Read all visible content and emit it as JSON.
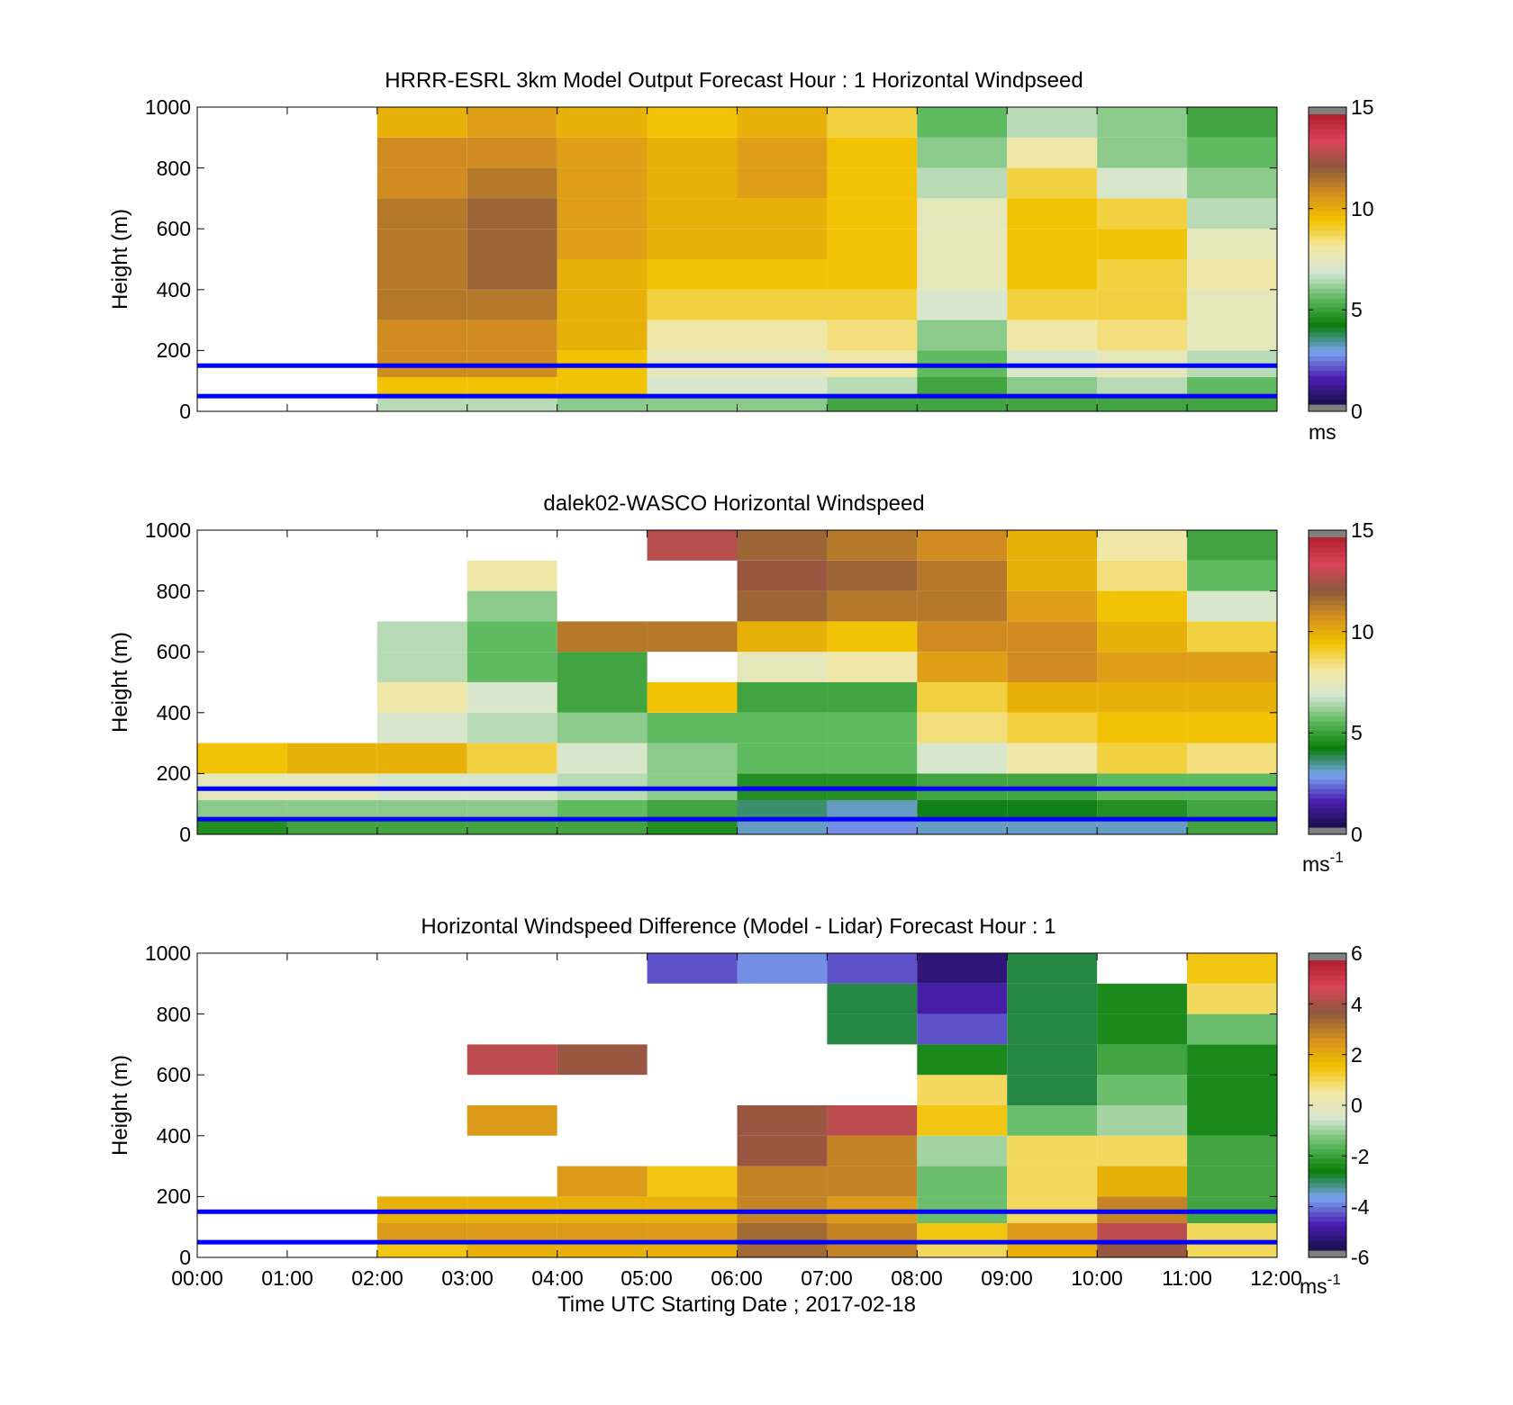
{
  "panels": [
    {
      "title": "HRRR-ESRL 3km Model Output   Forecast Hour : 1 Horizontal Windpseed",
      "ylabel": "Height (m)",
      "yticks": [
        "0",
        "200",
        "400",
        "600",
        "800",
        "1000"
      ],
      "colorbar": {
        "ticks": [
          "0",
          "5",
          "10",
          "15"
        ],
        "unit": "ms"
      }
    },
    {
      "title": "dalek02-WASCO  Horizontal Windspeed",
      "ylabel": "Height (m)",
      "yticks": [
        "0",
        "200",
        "400",
        "600",
        "800",
        "1000"
      ],
      "colorbar": {
        "ticks": [
          "0",
          "5",
          "10",
          "15"
        ],
        "unit": "ms",
        "unit_sup": "-1"
      }
    },
    {
      "title": "Horizontal Windspeed Difference (Model - Lidar) Forecast Hour : 1",
      "ylabel": "Height (m)",
      "yticks": [
        "0",
        "200",
        "400",
        "600",
        "800",
        "1000"
      ],
      "xticks": [
        "00:00",
        "01:00",
        "02:00",
        "03:00",
        "04:00",
        "05:00",
        "06:00",
        "07:00",
        "08:00",
        "09:00",
        "10:00",
        "11:00",
        "12:00"
      ],
      "xlabel": "Time UTC  Starting Date ; 2017-02-18",
      "colorbar": {
        "ticks": [
          "-6",
          "-4",
          "-2",
          "0",
          "2",
          "4",
          "6"
        ],
        "unit": "ms",
        "unit_sup": "-1"
      }
    }
  ],
  "colors": {
    "reference_lines": "#0000ff",
    "speed_scale": [
      "#7f7f7f",
      "#1a0f4a",
      "#4b1fb0",
      "#7aa4f0",
      "#0a7d0a",
      "#5cb85c",
      "#d4e6d2",
      "#f3e7a1",
      "#f2c200",
      "#d5901f",
      "#8c5a3c",
      "#d9435a",
      "#b0202e",
      "#7f7f7f"
    ],
    "diff_scale": [
      "#7f7f7f",
      "#1a0f4a",
      "#4b1fb0",
      "#7aa4f0",
      "#0a7d0a",
      "#5cb85c",
      "#d4e6d2",
      "#f3e7a1",
      "#f2c200",
      "#d5901f",
      "#8c5a3c",
      "#d9435a",
      "#b0202e",
      "#7f7f7f"
    ]
  },
  "chart_data": [
    {
      "type": "heatmap",
      "title": "HRRR-ESRL 3km Model Output   Forecast Hour : 1 Horizontal Windpseed",
      "xlabel": "",
      "ylabel": "Height (m)",
      "xlim": [
        0,
        12
      ],
      "ylim": [
        0,
        1000
      ],
      "clim": [
        0,
        15
      ],
      "colorbar_label": "ms",
      "reference_lines_m": [
        50,
        150
      ],
      "x_hours": [
        2,
        3,
        4,
        5,
        6,
        7,
        8,
        9,
        10,
        11
      ],
      "y_heights_m": [
        25,
        75,
        150,
        250,
        350,
        450,
        550,
        650,
        750,
        850,
        950
      ],
      "z": [
        [
          6.5,
          6.5,
          6,
          6,
          6,
          5,
          5,
          5,
          5,
          5
        ],
        [
          9.5,
          9.5,
          9.5,
          7,
          7,
          6.5,
          5,
          6,
          6.5,
          5.5
        ],
        [
          11,
          11,
          9.5,
          7.5,
          7.5,
          8,
          5.5,
          7,
          7.5,
          6.5
        ],
        [
          11,
          11,
          10,
          8,
          8,
          8.5,
          6,
          8,
          8.5,
          7.5
        ],
        [
          11.5,
          11.5,
          10,
          9,
          9,
          9,
          7,
          9,
          9,
          7.5
        ],
        [
          11.5,
          12,
          10,
          9.5,
          9.5,
          9.5,
          7.5,
          9.5,
          9,
          8
        ],
        [
          11.5,
          12,
          10.5,
          10,
          10,
          9.5,
          7.5,
          9.5,
          9.5,
          7.5
        ],
        [
          11.5,
          12,
          10.5,
          10,
          10,
          9.5,
          7.5,
          9.5,
          9,
          6.5
        ],
        [
          11,
          11.5,
          10.5,
          10,
          10.5,
          9.5,
          6.5,
          9,
          7,
          6
        ],
        [
          11,
          11,
          10.5,
          10,
          10.5,
          9.5,
          6,
          8,
          6,
          5.5
        ],
        [
          10,
          10.5,
          10,
          9.5,
          10,
          9,
          5.5,
          6.5,
          6,
          5
        ]
      ]
    },
    {
      "type": "heatmap",
      "title": "dalek02-WASCO  Horizontal Windspeed",
      "xlabel": "",
      "ylabel": "Height (m)",
      "xlim": [
        0,
        12
      ],
      "ylim": [
        0,
        1000
      ],
      "clim": [
        0,
        15
      ],
      "colorbar_label": "ms^-1",
      "reference_lines_m": [
        50,
        150
      ],
      "x_hours": [
        0,
        1,
        2,
        3,
        4,
        5,
        6,
        7,
        8,
        9,
        10,
        11
      ],
      "y_heights_m": [
        25,
        75,
        150,
        250,
        350,
        450,
        550,
        650,
        750,
        850,
        950
      ],
      "z": [
        [
          4.5,
          5,
          5,
          5,
          5,
          4.5,
          3,
          2.5,
          3,
          3,
          3,
          5
        ],
        [
          6,
          6,
          6,
          6,
          5.5,
          5,
          3.5,
          3,
          4,
          4,
          4.5,
          5
        ],
        [
          7.5,
          7.5,
          7,
          7,
          6.5,
          6,
          4.5,
          4.5,
          5,
          5,
          5.5,
          5.5
        ],
        [
          9.5,
          10,
          10,
          9,
          7,
          6,
          5.5,
          5.5,
          7,
          8,
          9,
          8.5
        ],
        [
          null,
          null,
          7,
          6.5,
          6,
          5.5,
          5.5,
          5.5,
          8.5,
          9,
          9.5,
          9.5
        ],
        [
          null,
          null,
          8,
          7,
          5,
          9.5,
          5,
          5,
          9,
          10,
          10,
          10
        ],
        [
          null,
          null,
          6.5,
          5.5,
          5,
          null,
          7.5,
          8,
          10.5,
          11,
          10.5,
          10.5
        ],
        [
          null,
          null,
          6.5,
          5.5,
          11.5,
          11.5,
          10,
          9.5,
          11,
          11,
          10,
          9
        ],
        [
          null,
          null,
          null,
          6,
          null,
          null,
          12,
          11.5,
          11.5,
          10.5,
          9.5,
          7
        ],
        [
          null,
          null,
          null,
          8,
          null,
          null,
          12.5,
          12,
          11.5,
          10,
          8.5,
          5.5
        ],
        [
          null,
          null,
          null,
          null,
          null,
          13,
          12,
          11.5,
          11,
          10,
          8,
          5
        ]
      ]
    },
    {
      "type": "heatmap",
      "title": "Horizontal Windspeed Difference (Model - Lidar) Forecast Hour : 1",
      "xlabel": "Time UTC  Starting Date ; 2017-02-18",
      "ylabel": "Height (m)",
      "xlim": [
        0,
        12
      ],
      "ylim": [
        0,
        1000
      ],
      "clim": [
        -6,
        6
      ],
      "colorbar_label": "ms^-1",
      "reference_lines_m": [
        50,
        150
      ],
      "x_hours": [
        2,
        3,
        4,
        5,
        6,
        7,
        8,
        9,
        10,
        11
      ],
      "y_heights_m": [
        25,
        75,
        150,
        250,
        350,
        450,
        550,
        650,
        750,
        850,
        950
      ],
      "z": [
        [
          1.5,
          2,
          2,
          2,
          3.5,
          3,
          1,
          2,
          4,
          1
        ],
        [
          2.5,
          2.5,
          2.5,
          2.5,
          3.5,
          3,
          1.5,
          2.5,
          4.5,
          1
        ],
        [
          2,
          2,
          2,
          2,
          3,
          2.5,
          -1.5,
          1,
          3,
          -2
        ],
        [
          null,
          null,
          2.5,
          1.5,
          3,
          3,
          -1.5,
          1,
          2,
          -2
        ],
        [
          null,
          null,
          null,
          null,
          4,
          3,
          -1,
          1,
          1,
          -2
        ],
        [
          null,
          2.5,
          null,
          null,
          4,
          4.5,
          1.5,
          -1.5,
          -1,
          -2.5
        ],
        [
          null,
          null,
          null,
          null,
          null,
          null,
          1,
          -3,
          -1.5,
          -2.5
        ],
        [
          null,
          4.5,
          4,
          null,
          null,
          null,
          -2.5,
          -3,
          -2,
          -2.5
        ],
        [
          null,
          null,
          null,
          null,
          null,
          -3,
          -4.5,
          -3,
          -2.5,
          -1.5
        ],
        [
          null,
          null,
          null,
          null,
          null,
          -3,
          -5,
          -3,
          -2.5,
          1
        ],
        [
          null,
          null,
          null,
          -4.5,
          -4,
          -4.5,
          -5.5,
          -3,
          null,
          1.5
        ]
      ]
    }
  ]
}
